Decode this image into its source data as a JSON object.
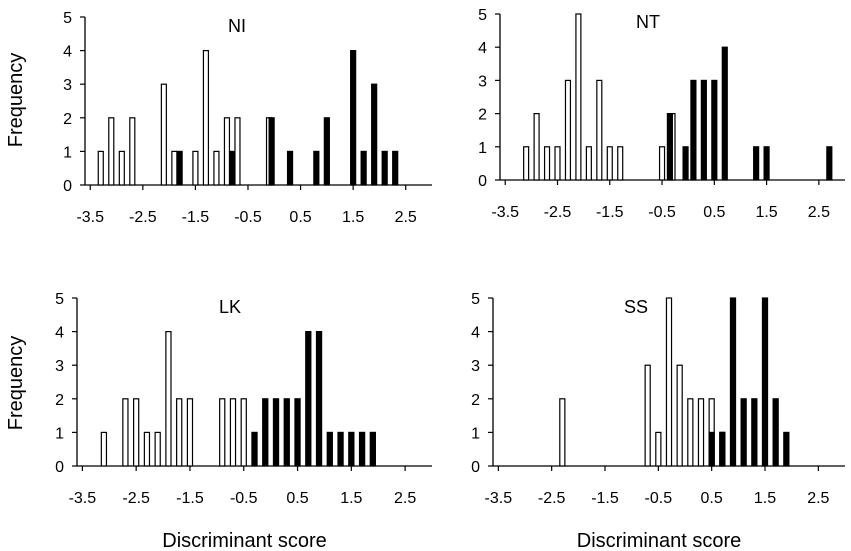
{
  "chart_data": [
    {
      "type": "bar",
      "title": "NI",
      "xlabel": "",
      "ylabel": "Frequency",
      "xticks": [
        "-3.5",
        "-2.5",
        "-1.5",
        "-0.5",
        "0.5",
        "1.5",
        "2.5"
      ],
      "xlim": [
        -3.6,
        3.0
      ],
      "ylim": [
        0,
        5
      ],
      "yticks": [
        "0",
        "1",
        "2",
        "3",
        "4",
        "5"
      ],
      "series": [
        {
          "fill": "open",
          "x": [
            -3.3,
            -3.1,
            -2.9,
            -2.7,
            -2.1,
            -1.9,
            -1.5,
            -1.3,
            -1.1,
            -0.9,
            -0.7,
            -0.1
          ],
          "values": [
            1,
            2,
            1,
            2,
            3,
            1,
            1,
            4,
            1,
            2,
            2,
            2
          ]
        },
        {
          "fill": "solid",
          "x": [
            -1.8,
            -0.8,
            -0.05,
            0.3,
            0.8,
            1.0,
            1.5,
            1.7,
            1.9,
            2.1,
            2.3
          ],
          "values": [
            1,
            1,
            2,
            1,
            1,
            2,
            4,
            1,
            3,
            1,
            1
          ]
        }
      ]
    },
    {
      "type": "bar",
      "title": "NT",
      "xlabel": "",
      "ylabel": "",
      "xticks": [
        "-3.5",
        "-2.5",
        "-1.5",
        "-0.5",
        "0.5",
        "1.5",
        "2.5"
      ],
      "xlim": [
        -3.6,
        3.0
      ],
      "ylim": [
        0,
        5
      ],
      "yticks": [
        "0",
        "1",
        "2",
        "3",
        "4",
        "5"
      ],
      "series": [
        {
          "fill": "open",
          "x": [
            -3.1,
            -2.9,
            -2.7,
            -2.5,
            -2.3,
            -2.1,
            -1.9,
            -1.7,
            -1.5,
            -1.3,
            -0.5,
            -0.3
          ],
          "values": [
            1,
            2,
            1,
            1,
            3,
            5,
            1,
            3,
            1,
            1,
            1,
            2
          ]
        },
        {
          "fill": "solid",
          "x": [
            -0.35,
            -0.05,
            0.1,
            0.3,
            0.5,
            0.7,
            1.3,
            1.5,
            2.7
          ],
          "values": [
            2,
            1,
            3,
            3,
            3,
            4,
            1,
            1,
            1
          ]
        }
      ]
    },
    {
      "type": "bar",
      "title": "LK",
      "xlabel": "Discriminant score",
      "ylabel": "Frequency",
      "xticks": [
        "-3.5",
        "-2.5",
        "-1.5",
        "-0.5",
        "0.5",
        "1.5",
        "2.5"
      ],
      "xlim": [
        -3.6,
        3.0
      ],
      "ylim": [
        0,
        5
      ],
      "yticks": [
        "0",
        "1",
        "2",
        "3",
        "4",
        "5"
      ],
      "series": [
        {
          "fill": "open",
          "x": [
            -3.1,
            -2.7,
            -2.5,
            -2.3,
            -2.1,
            -1.9,
            -1.7,
            -1.5,
            -0.9,
            -0.7,
            -0.5
          ],
          "values": [
            1,
            2,
            2,
            1,
            1,
            4,
            2,
            2,
            2,
            2,
            2
          ]
        },
        {
          "fill": "solid",
          "x": [
            -0.3,
            -0.1,
            0.1,
            0.3,
            0.5,
            0.7,
            0.9,
            1.1,
            1.3,
            1.5,
            1.7,
            1.9
          ],
          "values": [
            1,
            2,
            2,
            2,
            2,
            4,
            4,
            1,
            1,
            1,
            1,
            1
          ]
        }
      ]
    },
    {
      "type": "bar",
      "title": "SS",
      "xlabel": "Discriminant score",
      "ylabel": "",
      "xticks": [
        "-3.5",
        "-2.5",
        "-1.5",
        "-0.5",
        "0.5",
        "1.5",
        "2.5"
      ],
      "xlim": [
        -3.6,
        3.0
      ],
      "ylim": [
        0,
        5
      ],
      "yticks": [
        "0",
        "1",
        "2",
        "3",
        "4",
        "5"
      ],
      "series": [
        {
          "fill": "open",
          "x": [
            -2.3,
            -0.7,
            -0.5,
            -0.3,
            -0.1,
            0.1,
            0.3,
            0.5,
            0.7
          ],
          "values": [
            2,
            3,
            1,
            5,
            3,
            2,
            2,
            2,
            1
          ]
        },
        {
          "fill": "solid",
          "x": [
            0.5,
            0.7,
            0.9,
            1.1,
            1.3,
            1.5,
            1.7,
            1.9
          ],
          "values": [
            1,
            1,
            5,
            2,
            2,
            5,
            2,
            1
          ]
        }
      ]
    }
  ]
}
